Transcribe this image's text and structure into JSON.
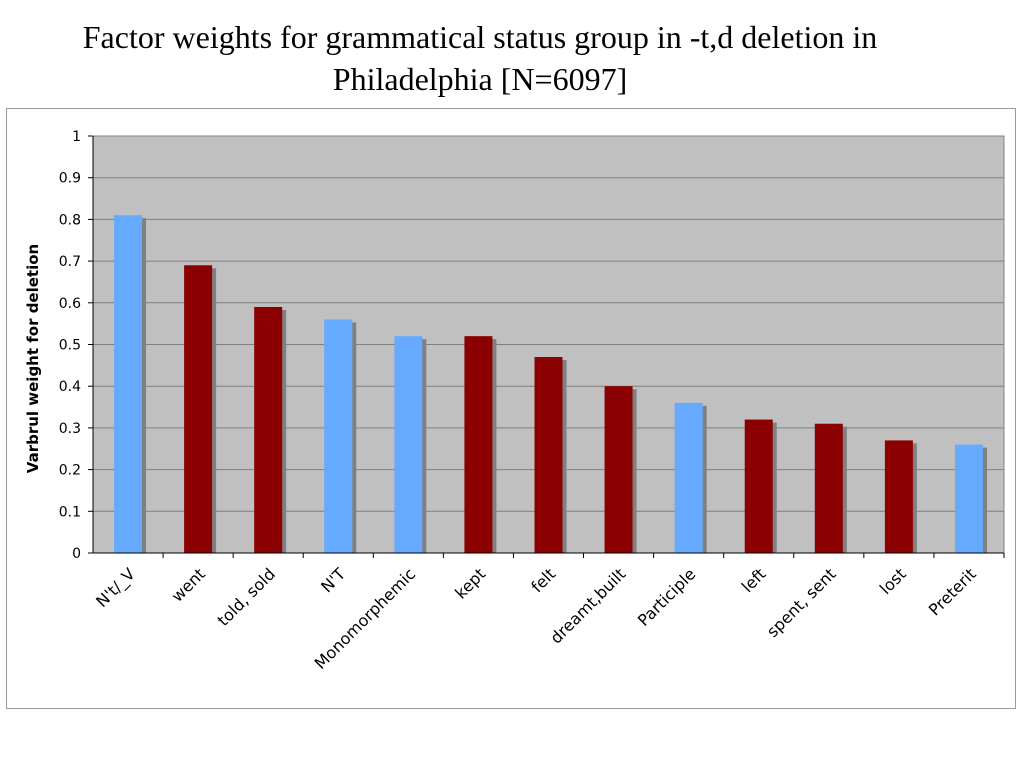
{
  "title": "Factor weights for grammatical status group in -t,d deletion in Philadelphia [N=6097]",
  "colors": {
    "plot_background": "#c0c0c0",
    "bar_blue": "#66aaff",
    "bar_red": "#8b0000",
    "bar_shadow": "#808080",
    "gridline": "#7f7f7f"
  },
  "chart_data": {
    "type": "bar",
    "title": "Factor weights for grammatical status group in -t,d deletion in Philadelphia [N=6097]",
    "xlabel": "",
    "ylabel": "Varbrul weight for deletion",
    "ylim": [
      0,
      1
    ],
    "yticks": [
      0,
      0.1,
      0.2,
      0.3,
      0.4,
      0.5,
      0.6,
      0.7,
      0.8,
      0.9,
      1
    ],
    "ytick_labels": [
      "0",
      "0.1",
      "0.2",
      "0.3",
      "0.4",
      "0.5",
      "0.6",
      "0.7",
      "0.8",
      "0.9",
      "1"
    ],
    "grid": true,
    "legend": "none",
    "categories": [
      "N't/_V",
      "went",
      "told, sold",
      "N'T",
      "Monomorphemic",
      "kept",
      "felt",
      "dreamt,built",
      "Participle",
      "left",
      "spent, sent",
      "lost",
      "Preterit"
    ],
    "values": [
      0.81,
      0.69,
      0.59,
      0.56,
      0.52,
      0.52,
      0.47,
      0.4,
      0.36,
      0.32,
      0.31,
      0.27,
      0.26
    ],
    "bar_colors": [
      "blue",
      "red",
      "red",
      "blue",
      "blue",
      "red",
      "red",
      "red",
      "blue",
      "red",
      "red",
      "red",
      "blue"
    ]
  }
}
